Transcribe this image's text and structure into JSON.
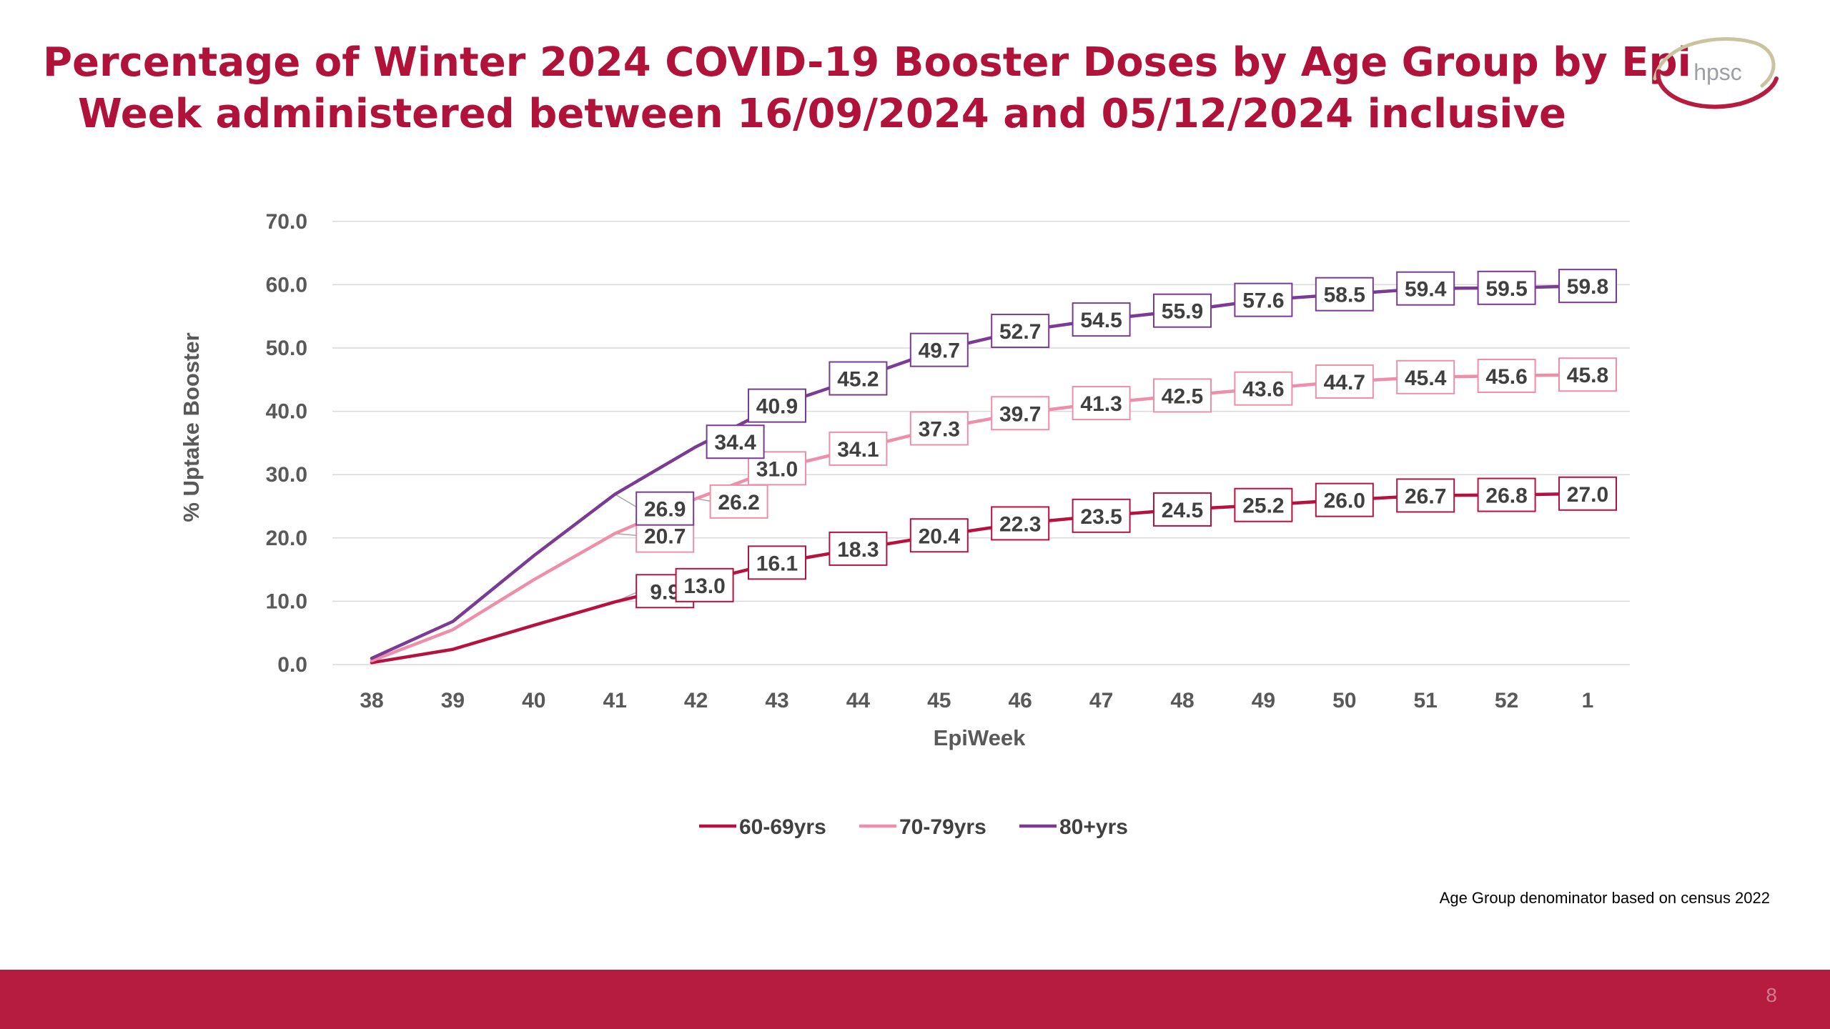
{
  "title": {
    "line1": "Percentage of Winter 2024 COVID-19 Booster Doses by Age Group by Epi",
    "line2": "Week administered between 16/09/2024 and 05/12/2024 inclusive"
  },
  "logo_text": "hpsc",
  "footnote": "Age Group denominator based on census 2022",
  "page_number": "8",
  "colors": {
    "title": "#b0123a",
    "footer_bar": "#b61c40",
    "series_60_69": "#b7123f",
    "series_70_79": "#ef8ea8",
    "series_80_plus": "#7b3a94"
  },
  "chart_data": {
    "type": "line",
    "title": "",
    "xlabel": "EpiWeek",
    "ylabel": "% Uptake Booster",
    "categories": [
      "38",
      "39",
      "40",
      "41",
      "42",
      "43",
      "44",
      "45",
      "46",
      "47",
      "48",
      "49",
      "50",
      "51",
      "52",
      "1"
    ],
    "ylim": [
      0,
      70
    ],
    "yticks": [
      "0.0",
      "10.0",
      "20.0",
      "30.0",
      "40.0",
      "50.0",
      "60.0",
      "70.0"
    ],
    "grid": true,
    "legend_position": "bottom",
    "series": [
      {
        "name": "60-69yrs",
        "color": "#b7123f",
        "values": [
          0.3,
          2.4,
          6.2,
          9.9,
          13.0,
          16.1,
          18.3,
          20.4,
          22.3,
          23.5,
          24.5,
          25.2,
          26.0,
          26.7,
          26.8,
          27.0
        ],
        "labels": [
          "",
          "",
          "",
          "9.9",
          "13.0",
          "16.1",
          "18.3",
          "20.4",
          "22.3",
          "23.5",
          "24.5",
          "25.2",
          "26.0",
          "26.7",
          "26.8",
          "27.0"
        ]
      },
      {
        "name": "70-79yrs",
        "color": "#ef8ea8",
        "values": [
          0.6,
          5.5,
          13.4,
          20.7,
          26.2,
          31.0,
          34.1,
          37.3,
          39.7,
          41.3,
          42.5,
          43.6,
          44.7,
          45.4,
          45.6,
          45.8
        ],
        "labels": [
          "",
          "",
          "",
          "20.7",
          "26.2",
          "31.0",
          "34.1",
          "37.3",
          "39.7",
          "41.3",
          "42.5",
          "43.6",
          "44.7",
          "45.4",
          "45.6",
          "45.8"
        ]
      },
      {
        "name": "80+yrs",
        "color": "#7b3a94",
        "values": [
          1.0,
          6.8,
          17.2,
          26.9,
          34.4,
          40.9,
          45.2,
          49.7,
          52.7,
          54.5,
          55.9,
          57.6,
          58.5,
          59.4,
          59.5,
          59.8
        ],
        "labels": [
          "",
          "",
          "",
          "26.9",
          "34.4",
          "40.9",
          "45.2",
          "49.7",
          "52.7",
          "54.5",
          "55.9",
          "57.6",
          "58.5",
          "59.4",
          "59.5",
          "59.8"
        ]
      }
    ]
  }
}
